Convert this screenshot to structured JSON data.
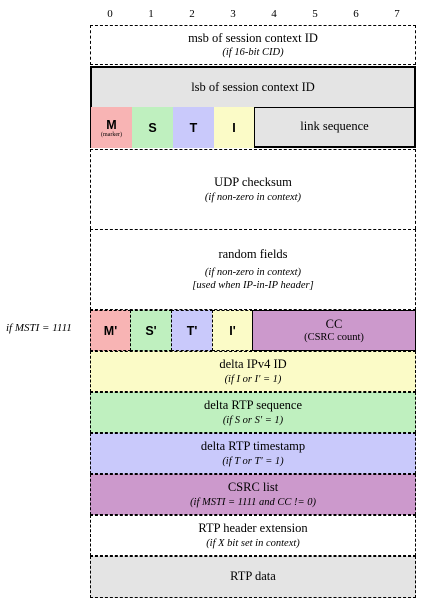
{
  "bit_numbers": [
    "0",
    "1",
    "2",
    "3",
    "4",
    "5",
    "6",
    "7"
  ],
  "colors": {
    "gray": "#e4e4e4",
    "pink": "#f8b4b4",
    "green": "#bff0bf",
    "blue": "#c9c9fb",
    "yellow": "#fbfbc7",
    "purple": "#cc99cc",
    "white": "#ffffff"
  },
  "side_label": "if MSTI = 1111",
  "rows": {
    "msb_cid": {
      "main": "msb of session context ID",
      "sub": "(if 16-bit CID)"
    },
    "lsb_cid": {
      "main": "lsb of session context ID"
    },
    "flags": {
      "m": "M",
      "m_note": "(marker)",
      "s": "S",
      "t": "T",
      "i": "I",
      "link_sequence": "link sequence"
    },
    "udp_checksum": {
      "main": "UDP checksum",
      "sub": "(if non-zero in context)"
    },
    "random_fields": {
      "main": "random fields",
      "sub1": "(if non-zero in context)",
      "sub2": "[used when IP-in-IP header]"
    },
    "msti": {
      "m": "M'",
      "s": "S'",
      "t": "T'",
      "i": "I'",
      "cc": "CC",
      "cc_note": "(CSRC count)"
    },
    "delta_ipv4_id": {
      "main": "delta IPv4 ID",
      "sub": "(if I or I' = 1)"
    },
    "delta_rtp_sequence": {
      "main": "delta RTP sequence",
      "sub": "(if S or S' = 1)"
    },
    "delta_rtp_timestamp": {
      "main": "delta RTP timestamp",
      "sub": "(if T or T' = 1)"
    },
    "csrc_list": {
      "main": "CSRC list",
      "sub": "(if MSTI = 1111 and CC != 0)"
    },
    "rtp_header_extension": {
      "main": "RTP header extension",
      "sub": "(if X bit set in context)"
    },
    "rtp_data": {
      "main": "RTP data"
    }
  }
}
